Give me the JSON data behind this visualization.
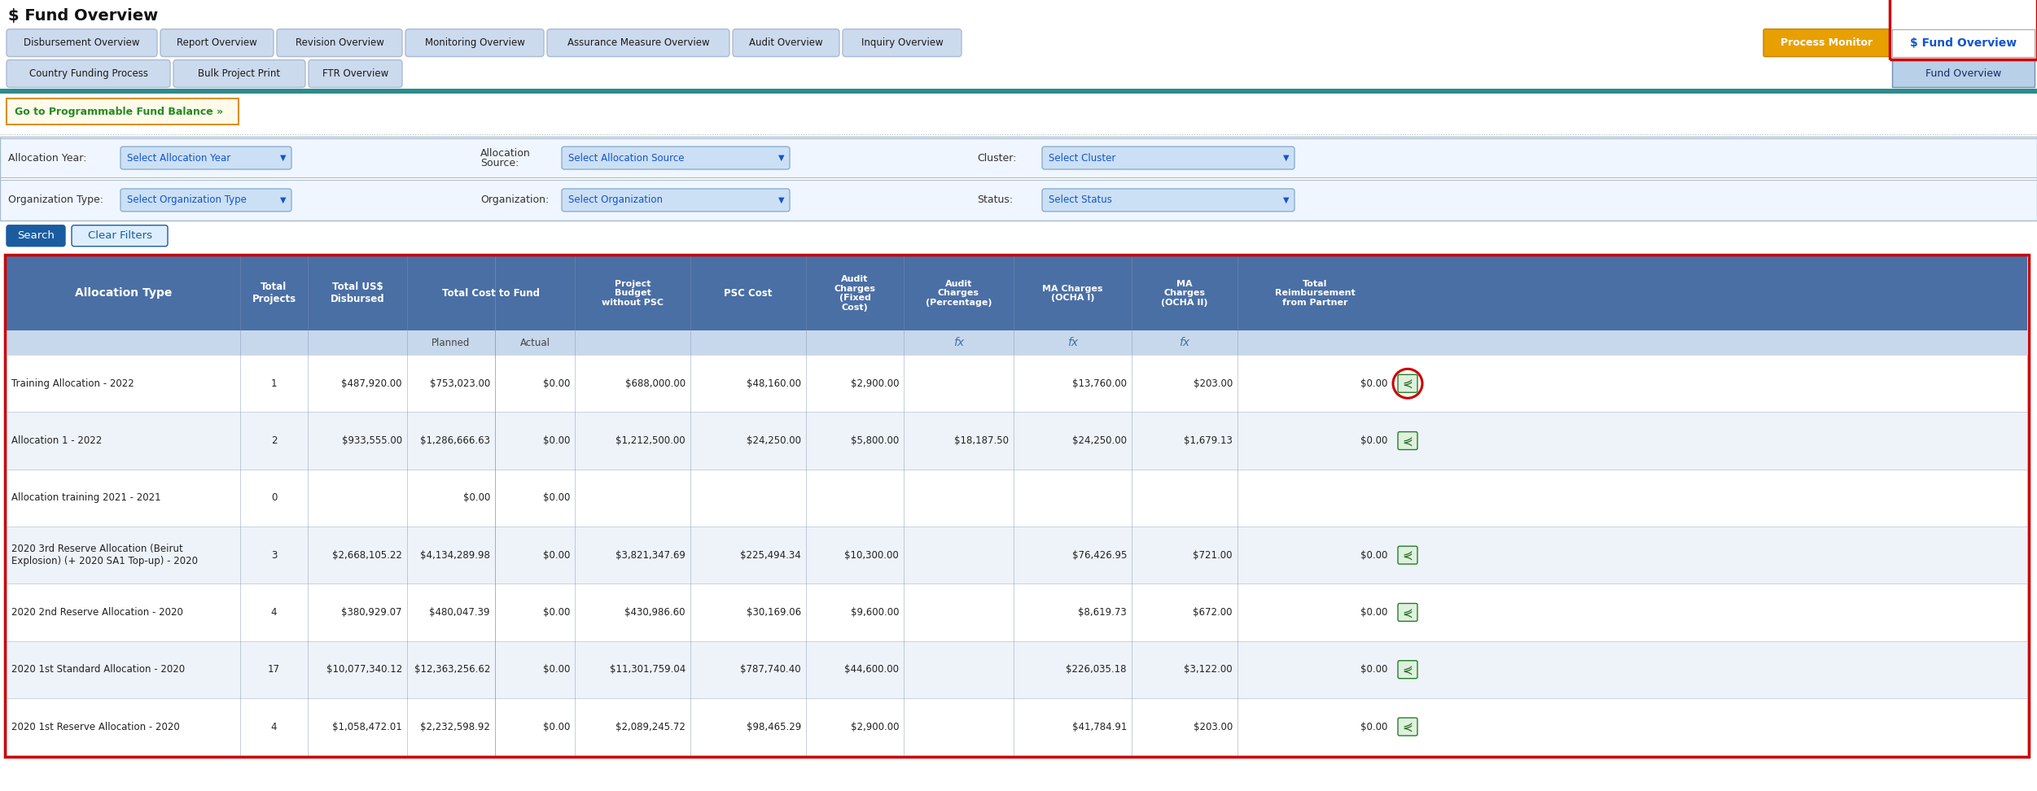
{
  "title": "$ Fund Overview",
  "nav_tabs_row1": [
    "Disbursement Overview",
    "Report Overview",
    "Revision Overview",
    "Monitoring Overview",
    "Assurance Measure Overview",
    "Audit Overview",
    "Inquiry Overview"
  ],
  "nav_tabs_row2": [
    "Country Funding Process",
    "Bulk Project Print",
    "FTR Overview"
  ],
  "right_tab_pm": "Process Monitor",
  "right_tab_fo": "$ Fund Overview",
  "right_tab2": "Fund Overview",
  "go_button": "Go to Programmable Fund Balance »",
  "search_btn": "Search",
  "clear_btn": "Clear Filters",
  "rows": [
    [
      "Training Allocation - 2022",
      "1",
      "$487,920.00",
      "$753,023.00",
      "$0.00",
      "$688,000.00",
      "$48,160.00",
      "$2,900.00",
      "",
      "$13,760.00",
      "$203.00",
      "$0.00",
      true
    ],
    [
      "Allocation 1 - 2022",
      "2",
      "$933,555.00",
      "$1,286,666.63",
      "$0.00",
      "$1,212,500.00",
      "$24,250.00",
      "$5,800.00",
      "$18,187.50",
      "$24,250.00",
      "$1,679.13",
      "$0.00",
      true
    ],
    [
      "Allocation training 2021 - 2021",
      "0",
      "",
      "$0.00",
      "$0.00",
      "",
      "",
      "",
      "",
      "",
      "",
      "",
      false
    ],
    [
      "2020 3rd Reserve Allocation (Beirut\nExplosion) (+ 2020 SA1 Top-up) - 2020",
      "3",
      "$2,668,105.22",
      "$4,134,289.98",
      "$0.00",
      "$3,821,347.69",
      "$225,494.34",
      "$10,300.00",
      "",
      "$76,426.95",
      "$721.00",
      "$0.00",
      true
    ],
    [
      "2020 2nd Reserve Allocation - 2020",
      "4",
      "$380,929.07",
      "$480,047.39",
      "$0.00",
      "$430,986.60",
      "$30,169.06",
      "$9,600.00",
      "",
      "$8,619.73",
      "$672.00",
      "$0.00",
      true
    ],
    [
      "2020 1st Standard Allocation - 2020",
      "17",
      "$10,077,340.12",
      "$12,363,256.62",
      "$0.00",
      "$11,301,759.04",
      "$787,740.40",
      "$44,600.00",
      "",
      "$226,035.18",
      "$3,122.00",
      "$0.00",
      true
    ],
    [
      "2020 1st Reserve Allocation - 2020",
      "4",
      "$1,058,472.01",
      "$2,232,598.92",
      "$0.00",
      "$2,089,245.72",
      "$98,465.29",
      "$2,900.00",
      "",
      "$41,784.91",
      "$203.00",
      "$0.00",
      true
    ]
  ],
  "bg_color": "#ffffff",
  "header_bg": "#4a6fa5",
  "header_text": "#ffffff",
  "subheader_bg": "#c8d8ec",
  "row_bg_white": "#ffffff",
  "row_bg_blue": "#eef3fa",
  "nav_tab_bg": "#ccdaee",
  "nav_tab_border": "#aabbd0",
  "nav_tab_text": "#1a1a1a",
  "pm_bg": "#e8a000",
  "pm_border": "#c88000",
  "pm_text": "#ffffff",
  "fo_text": "#1155cc",
  "fo_border_red": "#cc0000",
  "fo_bg": "#ffffff",
  "fo2_bg": "#b8d0e8",
  "fo2_border": "#7090b0",
  "fo2_text": "#1a2a6b",
  "teal_bar": "#2e8b8b",
  "go_bg": "#fffaea",
  "go_border": "#d89020",
  "go_text": "#228b22",
  "filter_box_bg": "#cce0f5",
  "filter_box_border": "#88b0d0",
  "filter_text": "#1155cc",
  "filter_arrow": "#1155cc",
  "search_bg": "#1a5ca0",
  "search_text": "#ffffff",
  "clear_bg": "#ddeeff",
  "clear_border": "#1a5ca0",
  "clear_text": "#1a5ca0",
  "table_red_border": "#cc0000",
  "row_line": "#c0ccd8",
  "excel_bg": "#e0f0e0",
  "excel_border": "#208020",
  "excel_text": "#1a6a1a",
  "fx_color": "#4472a8",
  "red_circle": "#cc0000",
  "col_divider": "#8898b8"
}
